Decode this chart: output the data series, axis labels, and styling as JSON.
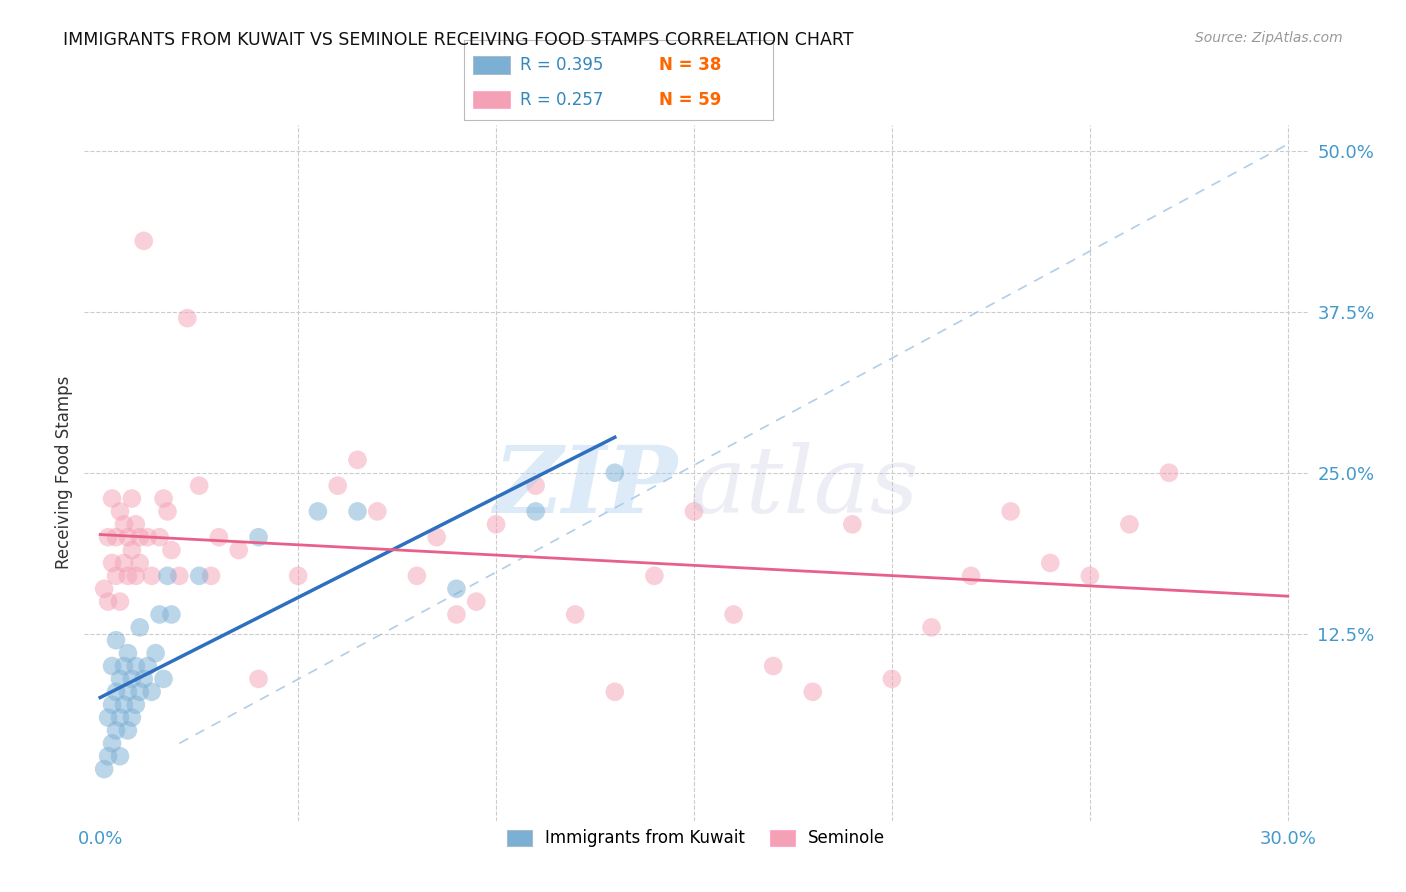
{
  "title": "IMMIGRANTS FROM KUWAIT VS SEMINOLE RECEIVING FOOD STAMPS CORRELATION CHART",
  "source": "Source: ZipAtlas.com",
  "ylabel": "Receiving Food Stamps",
  "x_min": 0.0,
  "x_max": 0.3,
  "y_min": 0.0,
  "y_max": 0.52,
  "color_kuwait": "#7BAFD4",
  "color_seminole": "#F4A0B5",
  "color_kuwait_line": "#2E6FBF",
  "color_seminole_line": "#E8608A",
  "color_diagonal": "#A8C8E8",
  "kuwait_x": [
    0.001,
    0.002,
    0.002,
    0.003,
    0.003,
    0.003,
    0.004,
    0.004,
    0.004,
    0.005,
    0.005,
    0.005,
    0.006,
    0.006,
    0.007,
    0.007,
    0.007,
    0.008,
    0.008,
    0.009,
    0.009,
    0.01,
    0.01,
    0.011,
    0.012,
    0.013,
    0.014,
    0.015,
    0.016,
    0.017,
    0.018,
    0.025,
    0.04,
    0.055,
    0.065,
    0.09,
    0.11,
    0.13
  ],
  "kuwait_y": [
    0.02,
    0.03,
    0.06,
    0.04,
    0.07,
    0.1,
    0.05,
    0.08,
    0.12,
    0.03,
    0.06,
    0.09,
    0.07,
    0.1,
    0.05,
    0.08,
    0.11,
    0.06,
    0.09,
    0.07,
    0.1,
    0.08,
    0.13,
    0.09,
    0.1,
    0.08,
    0.11,
    0.14,
    0.09,
    0.17,
    0.14,
    0.17,
    0.2,
    0.22,
    0.22,
    0.16,
    0.22,
    0.25
  ],
  "seminole_x": [
    0.001,
    0.002,
    0.002,
    0.003,
    0.003,
    0.004,
    0.004,
    0.005,
    0.005,
    0.006,
    0.006,
    0.007,
    0.007,
    0.008,
    0.008,
    0.009,
    0.009,
    0.01,
    0.01,
    0.011,
    0.012,
    0.013,
    0.015,
    0.016,
    0.017,
    0.018,
    0.02,
    0.022,
    0.025,
    0.028,
    0.03,
    0.035,
    0.04,
    0.05,
    0.06,
    0.065,
    0.07,
    0.08,
    0.085,
    0.09,
    0.095,
    0.1,
    0.11,
    0.12,
    0.13,
    0.14,
    0.15,
    0.16,
    0.17,
    0.18,
    0.19,
    0.2,
    0.21,
    0.22,
    0.23,
    0.24,
    0.25,
    0.26,
    0.27
  ],
  "seminole_y": [
    0.16,
    0.2,
    0.15,
    0.18,
    0.23,
    0.17,
    0.2,
    0.15,
    0.22,
    0.18,
    0.21,
    0.17,
    0.2,
    0.19,
    0.23,
    0.17,
    0.21,
    0.2,
    0.18,
    0.43,
    0.2,
    0.17,
    0.2,
    0.23,
    0.22,
    0.19,
    0.17,
    0.37,
    0.24,
    0.17,
    0.2,
    0.19,
    0.09,
    0.17,
    0.24,
    0.26,
    0.22,
    0.17,
    0.2,
    0.14,
    0.15,
    0.21,
    0.24,
    0.14,
    0.08,
    0.17,
    0.22,
    0.14,
    0.1,
    0.08,
    0.21,
    0.09,
    0.13,
    0.17,
    0.22,
    0.18,
    0.17,
    0.21,
    0.25
  ],
  "legend_r1": "R = 0.395",
  "legend_n1": "N = 38",
  "legend_r2": "R = 0.257",
  "legend_n2": "N = 59"
}
